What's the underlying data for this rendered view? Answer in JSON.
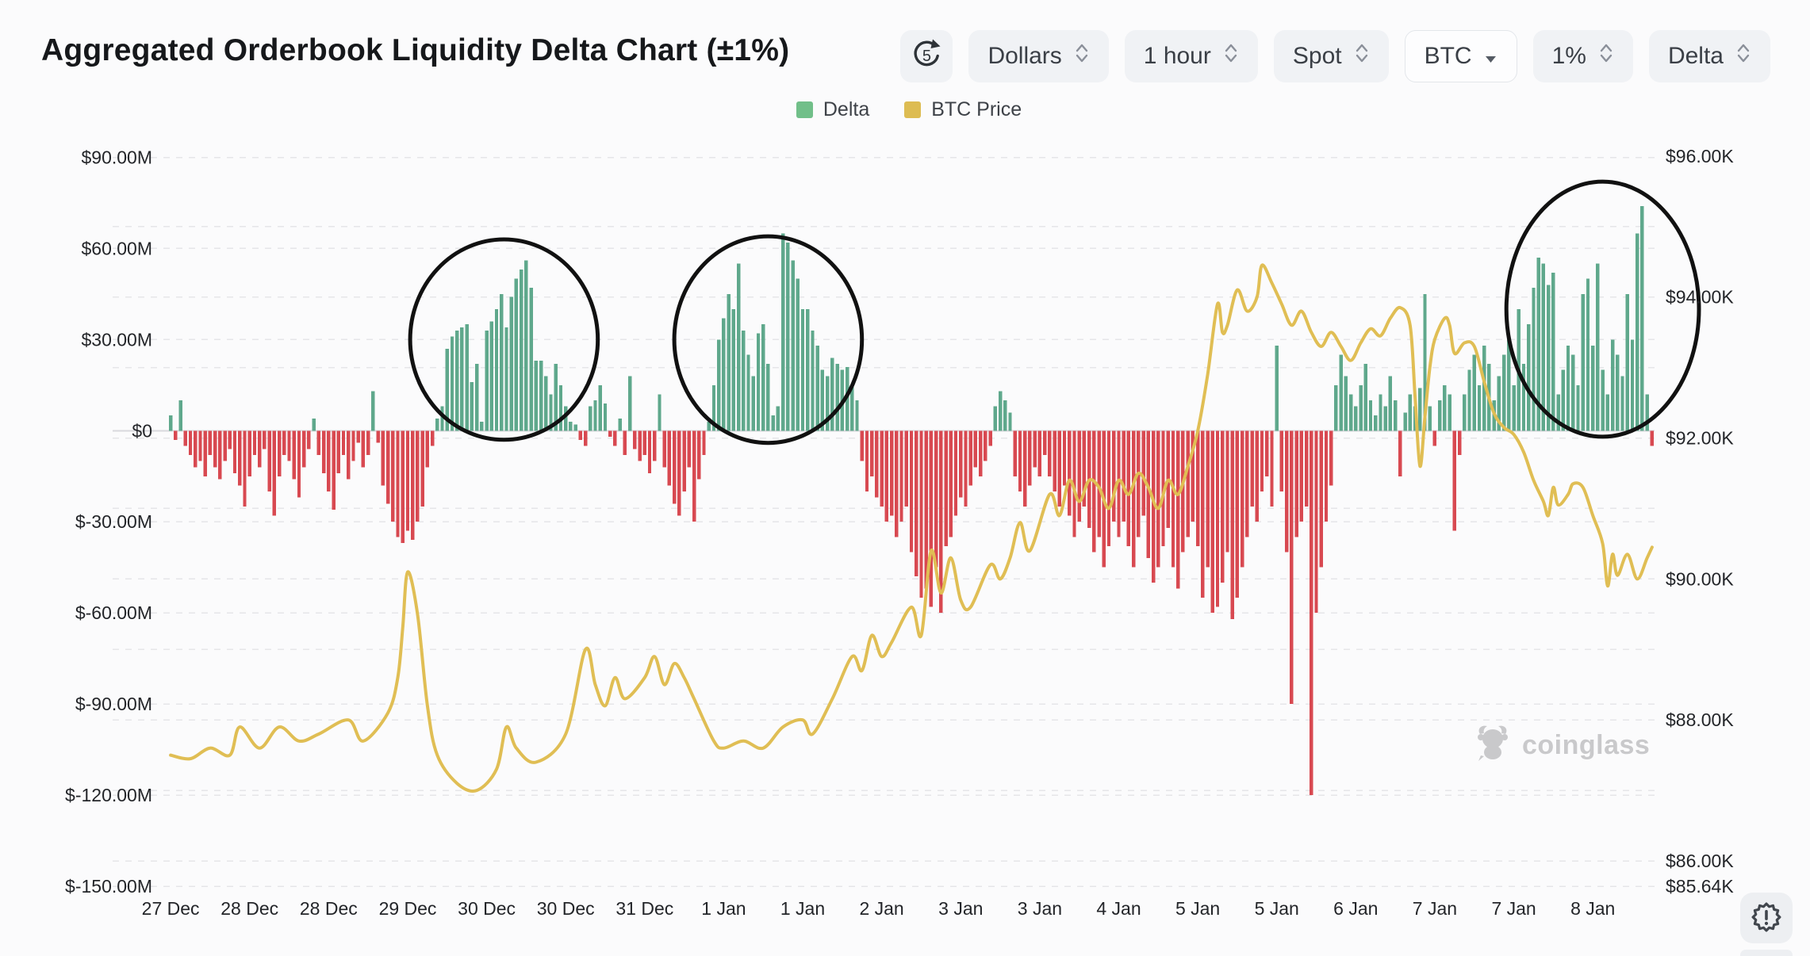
{
  "header": {
    "title": "Aggregated Orderbook Liquidity Delta Chart (±1%)"
  },
  "toolbar": {
    "refresh_count": "5",
    "selects": [
      {
        "label": "Dollars",
        "icon": "chevron-updown"
      },
      {
        "label": "1 hour",
        "icon": "chevron-updown"
      },
      {
        "label": "Spot",
        "icon": "chevron-updown"
      },
      {
        "label": "BTC",
        "icon": "caret-down"
      },
      {
        "label": "1%",
        "icon": "chevron-updown"
      },
      {
        "label": "Delta",
        "icon": "chevron-updown"
      }
    ]
  },
  "legend": {
    "items": [
      {
        "label": "Delta",
        "color": "#71bf89"
      },
      {
        "label": "BTC Price",
        "color": "#ddbc52"
      }
    ]
  },
  "watermark": {
    "text": "coinglass"
  },
  "chart_data": {
    "type": "bar+line",
    "title": "Aggregated Orderbook Liquidity Delta Chart (±1%)",
    "series_names": [
      "Delta",
      "BTC Price"
    ],
    "x_tick_labels": [
      "27 Dec",
      "28 Dec",
      "28 Dec",
      "29 Dec",
      "30 Dec",
      "30 Dec",
      "31 Dec",
      "1 Jan",
      "1 Jan",
      "2 Jan",
      "3 Jan",
      "3 Jan",
      "4 Jan",
      "5 Jan",
      "5 Jan",
      "6 Jan",
      "7 Jan",
      "7 Jan",
      "8 Jan"
    ],
    "x_tick_indices": [
      0,
      16,
      32,
      48,
      64,
      80,
      96,
      112,
      128,
      144,
      160,
      176,
      192,
      208,
      224,
      240,
      256,
      272,
      288
    ],
    "left_axis": {
      "unit": "USD millions",
      "tick_values": [
        90,
        60,
        30,
        0,
        -30,
        -60,
        -90,
        -120,
        -150
      ],
      "tick_labels": [
        "$90.00M",
        "$60.00M",
        "$30.00M",
        "$0",
        "$-30.00M",
        "$-60.00M",
        "$-90.00M",
        "$-120.00M",
        "$-150.00M"
      ],
      "range": [
        -150,
        99
      ]
    },
    "right_axis": {
      "unit": "USD thousands",
      "tick_values": [
        96,
        94,
        92,
        90,
        88,
        86,
        85.64
      ],
      "tick_labels": [
        "$96.00K",
        "$94.00K",
        "$92.00K",
        "$90.00K",
        "$88.00K",
        "$86.00K",
        "$85.64K"
      ],
      "minor_grid_values": [
        95,
        94,
        93,
        92,
        91,
        90,
        89,
        88,
        87,
        86
      ],
      "range": [
        85.64,
        96.37
      ]
    },
    "grid": true,
    "legend_position": "top-center",
    "delta_bars_musd": [
      5,
      -3,
      10,
      -5,
      -8,
      -12,
      -10,
      -15,
      -8,
      -12,
      -16,
      -10,
      -6,
      -14,
      -18,
      -25,
      -15,
      -8,
      -12,
      -6,
      -20,
      -28,
      -15,
      -8,
      -10,
      -16,
      -22,
      -12,
      -6,
      4,
      -8,
      -14,
      -20,
      -26,
      -14,
      -8,
      -16,
      -10,
      -4,
      -12,
      -8,
      13,
      -4,
      -18,
      -24,
      -30,
      -35,
      -37,
      -33,
      -36,
      -30,
      -25,
      -12,
      -5,
      4,
      8,
      27,
      31,
      33,
      34,
      35,
      16,
      22,
      3,
      33,
      36,
      40,
      45,
      34,
      44,
      50,
      53,
      56,
      47,
      23,
      23,
      18,
      12,
      22,
      15,
      8,
      3,
      2,
      -3,
      -5,
      8,
      10,
      15,
      9,
      -2,
      -5,
      4,
      -8,
      18,
      -6,
      -10,
      -8,
      -14,
      -10,
      12,
      -12,
      -18,
      -24,
      -28,
      -20,
      -12,
      -30,
      -16,
      -8,
      3,
      15,
      30,
      37,
      45,
      40,
      55,
      33,
      25,
      18,
      32,
      35,
      22,
      5,
      8,
      65,
      62,
      56,
      50,
      40,
      40,
      33,
      28,
      20,
      18,
      24,
      22,
      20,
      21,
      15,
      10,
      -10,
      -20,
      -15,
      -22,
      -25,
      -30,
      -28,
      -35,
      -30,
      -25,
      -40,
      -48,
      -55,
      -52,
      -58,
      -45,
      -60,
      -38,
      -35,
      -28,
      -22,
      -25,
      -18,
      -12,
      -15,
      -10,
      -5,
      8,
      13,
      10,
      6,
      -15,
      -20,
      -25,
      -18,
      -12,
      -15,
      -8,
      -15,
      -20,
      -25,
      -18,
      -28,
      -35,
      -30,
      -25,
      -32,
      -40,
      -35,
      -45,
      -38,
      -30,
      -35,
      -30,
      -38,
      -45,
      -35,
      -28,
      -42,
      -50,
      -45,
      -38,
      -32,
      -45,
      -52,
      -40,
      -35,
      -30,
      -38,
      -55,
      -45,
      -60,
      -58,
      -50,
      -40,
      -62,
      -55,
      -45,
      -35,
      -25,
      -30,
      -20,
      -15,
      -25,
      28,
      -20,
      -40,
      -90,
      -35,
      -30,
      -25,
      -120,
      -60,
      -45,
      -30,
      -18,
      15,
      25,
      18,
      12,
      8,
      15,
      22,
      10,
      5,
      12,
      8,
      18,
      10,
      -15,
      6,
      12,
      8,
      14,
      45,
      8,
      -5,
      10,
      15,
      12,
      -33,
      -8,
      12,
      20,
      25,
      15,
      28,
      22,
      10,
      18,
      25,
      30,
      15,
      40,
      22,
      35,
      47,
      57,
      55,
      48,
      52,
      12,
      20,
      28,
      25,
      15,
      45,
      50,
      28,
      55,
      20,
      12,
      30,
      25,
      18,
      45,
      30,
      65,
      74,
      12,
      -5
    ],
    "btc_price_kusd": [
      [
        0,
        87.5
      ],
      [
        4,
        87.45
      ],
      [
        8,
        87.6
      ],
      [
        12,
        87.5
      ],
      [
        14,
        87.9
      ],
      [
        18,
        87.6
      ],
      [
        22,
        87.9
      ],
      [
        26,
        87.7
      ],
      [
        30,
        87.8
      ],
      [
        36,
        88.0
      ],
      [
        39,
        87.7
      ],
      [
        44,
        88.1
      ],
      [
        46,
        88.6
      ],
      [
        47,
        89.3
      ],
      [
        48,
        90.1
      ],
      [
        50,
        89.5
      ],
      [
        52,
        88.2
      ],
      [
        54,
        87.5
      ],
      [
        58,
        87.1
      ],
      [
        62,
        87.0
      ],
      [
        66,
        87.3
      ],
      [
        68,
        87.9
      ],
      [
        70,
        87.6
      ],
      [
        74,
        87.4
      ],
      [
        80,
        87.8
      ],
      [
        84,
        89.0
      ],
      [
        86,
        88.5
      ],
      [
        88,
        88.2
      ],
      [
        90,
        88.6
      ],
      [
        92,
        88.3
      ],
      [
        96,
        88.6
      ],
      [
        98,
        88.9
      ],
      [
        100,
        88.5
      ],
      [
        102,
        88.8
      ],
      [
        104,
        88.6
      ],
      [
        106,
        88.3
      ],
      [
        110,
        87.7
      ],
      [
        112,
        87.6
      ],
      [
        116,
        87.7
      ],
      [
        120,
        87.6
      ],
      [
        124,
        87.9
      ],
      [
        128,
        88.0
      ],
      [
        130,
        87.8
      ],
      [
        134,
        88.3
      ],
      [
        138,
        88.9
      ],
      [
        140,
        88.7
      ],
      [
        142,
        89.2
      ],
      [
        144,
        88.9
      ],
      [
        146,
        89.1
      ],
      [
        150,
        89.6
      ],
      [
        152,
        89.2
      ],
      [
        154,
        90.4
      ],
      [
        156,
        89.8
      ],
      [
        158,
        90.3
      ],
      [
        160,
        89.7
      ],
      [
        162,
        89.6
      ],
      [
        166,
        90.2
      ],
      [
        168,
        90.0
      ],
      [
        170,
        90.3
      ],
      [
        172,
        90.8
      ],
      [
        174,
        90.4
      ],
      [
        178,
        91.2
      ],
      [
        180,
        90.9
      ],
      [
        182,
        91.4
      ],
      [
        184,
        91.1
      ],
      [
        186,
        91.4
      ],
      [
        188,
        91.3
      ],
      [
        190,
        91.0
      ],
      [
        192,
        91.4
      ],
      [
        194,
        91.2
      ],
      [
        196,
        91.5
      ],
      [
        198,
        91.3
      ],
      [
        200,
        91.0
      ],
      [
        202,
        91.4
      ],
      [
        204,
        91.2
      ],
      [
        206,
        91.6
      ],
      [
        208,
        92.1
      ],
      [
        210,
        92.9
      ],
      [
        212,
        93.9
      ],
      [
        213,
        93.5
      ],
      [
        214,
        93.6
      ],
      [
        216,
        94.1
      ],
      [
        218,
        93.8
      ],
      [
        220,
        94.0
      ],
      [
        221,
        94.45
      ],
      [
        223,
        94.2
      ],
      [
        225,
        93.9
      ],
      [
        227,
        93.6
      ],
      [
        229,
        93.8
      ],
      [
        231,
        93.5
      ],
      [
        233,
        93.3
      ],
      [
        235,
        93.5
      ],
      [
        237,
        93.3
      ],
      [
        239,
        93.1
      ],
      [
        241,
        93.35
      ],
      [
        243,
        93.55
      ],
      [
        245,
        93.45
      ],
      [
        247,
        93.7
      ],
      [
        249,
        93.85
      ],
      [
        251,
        93.6
      ],
      [
        252,
        92.6
      ],
      [
        253,
        91.6
      ],
      [
        254,
        92.3
      ],
      [
        255,
        93.0
      ],
      [
        256,
        93.4
      ],
      [
        258,
        93.7
      ],
      [
        259,
        93.6
      ],
      [
        260,
        93.2
      ],
      [
        262,
        93.35
      ],
      [
        264,
        93.3
      ],
      [
        266,
        92.8
      ],
      [
        268,
        92.35
      ],
      [
        270,
        92.15
      ],
      [
        272,
        92.05
      ],
      [
        274,
        91.8
      ],
      [
        276,
        91.4
      ],
      [
        278,
        91.1
      ],
      [
        279,
        90.9
      ],
      [
        280,
        91.3
      ],
      [
        281,
        91.05
      ],
      [
        283,
        91.2
      ],
      [
        284,
        91.35
      ],
      [
        286,
        91.3
      ],
      [
        288,
        90.9
      ],
      [
        290,
        90.5
      ],
      [
        291,
        89.9
      ],
      [
        292,
        90.35
      ],
      [
        293,
        90.05
      ],
      [
        295,
        90.35
      ],
      [
        297,
        90.0
      ],
      [
        299,
        90.3
      ],
      [
        300,
        90.45
      ]
    ],
    "annotations": {
      "circles": [
        {
          "center_index": 67.5,
          "center_value_musd": 30,
          "radius_index": 19,
          "radius_value_musd": 33
        },
        {
          "center_index": 121,
          "center_value_musd": 30,
          "radius_index": 19,
          "radius_value_musd": 34
        },
        {
          "center_index": 290,
          "center_value_musd": 40,
          "radius_index": 19.5,
          "radius_value_musd": 42
        }
      ],
      "circle_color": "#111111"
    },
    "colors": {
      "delta_positive": "#5fa88c",
      "delta_negative": "#d84951",
      "btc_line": "#e0be54",
      "grid": "#e6e6e9",
      "zero_line": "#d8d9dd",
      "axis_text": "#232529"
    }
  }
}
